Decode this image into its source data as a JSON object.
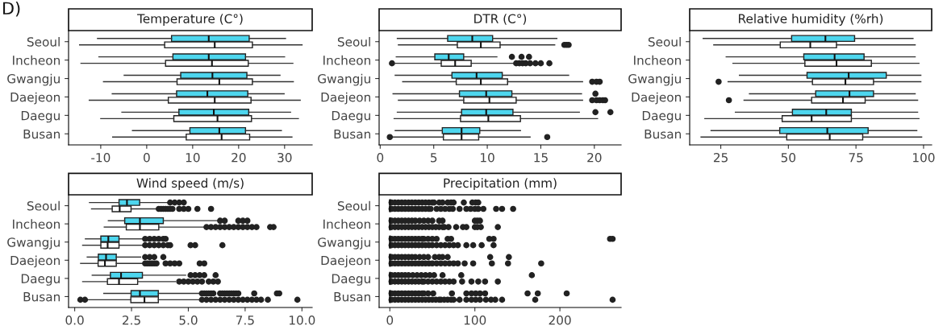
{
  "chart_data": [
    {
      "type": "box",
      "orientation": "horizontal",
      "title": "Temperature (C°)",
      "annotations": [
        "D)"
      ],
      "categories": [
        "Seoul",
        "Incheon",
        "Gwangju",
        "Daejeon",
        "Daegu",
        "Busan"
      ],
      "xlim": [
        -17,
        36
      ],
      "xticks": [
        -10,
        0,
        10,
        20,
        30
      ],
      "series": [
        {
          "color": "#4dd6ee",
          "boxes": [
            {
              "low": -10.7,
              "q1": 5.4,
              "median": 13.5,
              "q3": 22.3,
              "high": 30.2
            },
            {
              "low": -10.4,
              "q1": 5.7,
              "median": 13.5,
              "q3": 21.5,
              "high": 30.0
            },
            {
              "low": -4.9,
              "q1": 7.4,
              "median": 14.3,
              "q3": 21.8,
              "high": 29.0
            },
            {
              "low": -7.5,
              "q1": 6.5,
              "median": 13.2,
              "q3": 22.0,
              "high": 29.9
            },
            {
              "low": -5.4,
              "q1": 7.0,
              "median": 14.6,
              "q3": 22.2,
              "high": 31.3
            },
            {
              "low": -3.1,
              "q1": 9.4,
              "median": 15.8,
              "q3": 21.5,
              "high": 29.3
            }
          ]
        },
        {
          "color": "#ffffff",
          "boxes": [
            {
              "low": -14.6,
              "q1": 3.9,
              "median": 14.8,
              "q3": 23.0,
              "high": 33.8
            },
            {
              "low": -14.3,
              "q1": 4.1,
              "median": 14.2,
              "q3": 22.1,
              "high": 31.8
            },
            {
              "low": -9.4,
              "q1": 6.6,
              "median": 15.8,
              "q3": 23.0,
              "high": 31.9
            },
            {
              "low": -12.5,
              "q1": 4.7,
              "median": 14.8,
              "q3": 22.7,
              "high": 33.4
            },
            {
              "low": -10.0,
              "q1": 5.9,
              "median": 15.4,
              "q3": 22.8,
              "high": 33.0
            },
            {
              "low": -7.4,
              "q1": 8.6,
              "median": 16.3,
              "q3": 22.4,
              "high": 31.6
            }
          ]
        }
      ]
    },
    {
      "type": "box",
      "orientation": "horizontal",
      "title": "DTR (C°)",
      "categories": [
        "Seoul",
        "Incheon",
        "Gwangju",
        "Daejeon",
        "Daegu",
        "Busan"
      ],
      "xlim": [
        -0.1,
        22.5
      ],
      "xticks": [
        0,
        5,
        10,
        15,
        20
      ],
      "series": [
        {
          "color": "#4dd6ee",
          "boxes": [
            {
              "low": 1.6,
              "q1": 6.3,
              "median": 8.6,
              "q3": 10.5,
              "high": 16.5
            },
            {
              "low": 1.5,
              "q1": 5.1,
              "median": 6.4,
              "q3": 7.8,
              "high": 10.9,
              "outliers": [
                12.3,
                13.2,
                13.9
              ]
            },
            {
              "low": 1.4,
              "q1": 6.7,
              "median": 9.0,
              "q3": 11.4,
              "high": 17.6
            },
            {
              "low": 1.2,
              "q1": 7.4,
              "median": 9.9,
              "q3": 12.3,
              "high": 18.8,
              "outliers": [
                20.1
              ]
            },
            {
              "low": 1.6,
              "q1": 7.6,
              "median": 9.9,
              "q3": 12.4,
              "high": 18.6,
              "outliers": [
                20.1,
                21.5
              ]
            },
            {
              "low": 1.4,
              "q1": 5.8,
              "median": 7.6,
              "q3": 9.3,
              "high": 13.1
            }
          ]
        },
        {
          "color": "#ffffff",
          "boxes": [
            {
              "low": 1.7,
              "q1": 7.2,
              "median": 9.4,
              "q3": 11.2,
              "high": 16.3,
              "outliers": [
                17.2,
                17.4,
                17.6
              ]
            },
            {
              "low": 1.4,
              "q1": 5.7,
              "median": 7.0,
              "q3": 8.5,
              "high": 12.4,
              "outliers": [
                1.1,
                12.7,
                13.0,
                13.3,
                13.6,
                14.0,
                14.5,
                15.0,
                15.8
              ]
            },
            {
              "low": 2.1,
              "q1": 7.1,
              "median": 9.4,
              "q3": 11.9,
              "high": 18.9,
              "outliers": [
                19.8,
                20.2,
                20.5
              ]
            },
            {
              "low": 1.7,
              "q1": 7.8,
              "median": 10.2,
              "q3": 12.7,
              "high": 18.9,
              "outliers": [
                19.8,
                20.2,
                20.5,
                20.8,
                21.0
              ]
            },
            {
              "low": 1.3,
              "q1": 7.5,
              "median": 10.1,
              "q3": 13.1,
              "high": 20.3
            },
            {
              "low": 1.2,
              "q1": 5.9,
              "median": 7.6,
              "q3": 9.2,
              "high": 14.0,
              "outliers": [
                0.9,
                15.6
              ]
            }
          ]
        }
      ]
    },
    {
      "type": "box",
      "orientation": "horizontal",
      "title": "Relative humidity (%rh)",
      "categories": [
        "Seoul",
        "Incheon",
        "Gwangju",
        "Daejeon",
        "Daegu",
        "Busan"
      ],
      "xlim": [
        13.5,
        103
      ],
      "xticks": [
        25,
        50,
        75,
        100
      ],
      "series": [
        {
          "color": "#4dd6ee",
          "boxes": [
            {
              "low": 18.5,
              "q1": 51.2,
              "median": 63.7,
              "q3": 74.5,
              "high": 96.1
            },
            {
              "low": 27.0,
              "q1": 55.7,
              "median": 67.1,
              "q3": 78.0,
              "high": 96.9
            },
            {
              "low": 31.9,
              "q1": 56.9,
              "median": 72.3,
              "q3": 86.2,
              "high": 99.0
            },
            {
              "low": 35.6,
              "q1": 60.1,
              "median": 72.6,
              "q3": 81.5,
              "high": 96.9
            },
            {
              "low": 30.4,
              "q1": 51.5,
              "median": 64.0,
              "q3": 73.3,
              "high": 97.8
            },
            {
              "low": 21.4,
              "q1": 46.8,
              "median": 64.4,
              "q3": 79.5,
              "high": 97.5
            }
          ]
        },
        {
          "color": "#ffffff",
          "boxes": [
            {
              "low": 22.4,
              "q1": 47.0,
              "median": 58.1,
              "q3": 67.8,
              "high": 96.9
            },
            {
              "low": 29.5,
              "q1": 56.1,
              "median": 67.8,
              "q3": 80.7,
              "high": 98.3
            },
            {
              "low": 27.7,
              "q1": 58.9,
              "median": 71.1,
              "q3": 81.5,
              "high": 99.0,
              "outliers": [
                24.2
              ]
            },
            {
              "low": 33.6,
              "q1": 58.6,
              "median": 70.2,
              "q3": 78.4,
              "high": 97.8,
              "outliers": [
                28.0
              ]
            },
            {
              "low": 19.1,
              "q1": 47.7,
              "median": 58.6,
              "q3": 73.3,
              "high": 98.3
            },
            {
              "low": 17.7,
              "q1": 49.4,
              "median": 65.3,
              "q3": 77.5,
              "high": 99.3
            }
          ]
        }
      ]
    },
    {
      "type": "box",
      "orientation": "horizontal",
      "title": "Wind speed (m/s)",
      "categories": [
        "Seoul",
        "Incheon",
        "Gwangju",
        "Daejeon",
        "Daegu",
        "Busan"
      ],
      "xlim": [
        -0.27,
        10.45
      ],
      "xticks": [
        {
          "value": 0,
          "label": "0.0"
        },
        2.5,
        {
          "value": 5,
          "label": "5.0"
        },
        7.5,
        {
          "value": 10,
          "label": "10.0"
        }
      ],
      "series": [
        {
          "color": "#4dd6ee",
          "boxes": [
            {
              "low": 0.65,
              "q1": 1.95,
              "median": 2.3,
              "q3": 2.86,
              "high": 4.1,
              "outliers": [
                4.2,
                4.4,
                4.6,
                4.8
              ]
            },
            {
              "low": 1.48,
              "q1": 2.2,
              "median": 2.87,
              "q3": 3.9,
              "high": 6.3,
              "outliers": [
                6.4,
                6.6,
                7.2,
                7.4,
                7.6
              ]
            },
            {
              "low": 0.47,
              "q1": 1.15,
              "median": 1.48,
              "q3": 1.95,
              "high": 3.0,
              "outliers": [
                3.1,
                3.3,
                3.5,
                3.7,
                3.9,
                4.0
              ]
            },
            {
              "low": 0.55,
              "q1": 1.04,
              "median": 1.38,
              "q3": 1.83,
              "high": 2.9,
              "outliers": [
                3.1,
                3.3,
                3.5,
                3.9
              ]
            },
            {
              "low": 0.77,
              "q1": 1.57,
              "median": 2.04,
              "q3": 2.98,
              "high": 4.88,
              "outliers": [
                5.1,
                5.3,
                5.5,
                5.7,
                6.2
              ]
            },
            {
              "low": 1.28,
              "q1": 2.48,
              "median": 2.87,
              "q3": 3.68,
              "high": 5.5,
              "outliers": [
                5.6,
                5.7,
                5.8,
                5.9,
                6.0,
                6.1,
                6.4,
                6.5,
                6.6,
                6.7,
                6.8,
                6.9,
                7.0,
                7.1,
                7.2,
                7.9,
                8.9,
                9.0
              ]
            }
          ]
        },
        {
          "color": "#ffffff",
          "boxes": [
            {
              "low": 0.74,
              "q1": 1.65,
              "median": 1.98,
              "q3": 2.48,
              "high": 3.6,
              "outliers": [
                3.7,
                3.8,
                3.9,
                4.0,
                4.1,
                4.2,
                4.3,
                4.6,
                4.8,
                5.0,
                5.4,
                6.0
              ]
            },
            {
              "low": 1.3,
              "q1": 2.27,
              "median": 2.87,
              "q3": 3.7,
              "high": 5.7,
              "outliers": [
                5.8,
                6.0,
                6.2,
                6.4,
                6.6,
                6.8,
                7.0,
                7.2,
                7.4,
                7.6,
                7.8,
                8.0,
                8.6,
                8.75
              ]
            },
            {
              "low": 0.35,
              "q1": 1.15,
              "median": 1.45,
              "q3": 1.95,
              "high": 3.0,
              "outliers": [
                3.1,
                3.3,
                3.5,
                3.7,
                3.9,
                4.1,
                4.2,
                5.1,
                5.3,
                6.5
              ]
            },
            {
              "low": 0.26,
              "q1": 1.03,
              "median": 1.33,
              "q3": 1.83,
              "high": 3.0,
              "outliers": [
                3.1,
                3.2,
                3.3,
                3.4,
                3.5,
                3.6,
                4.0,
                4.2,
                4.4,
                4.6,
                5.5,
                5.7
              ]
            },
            {
              "low": 0.35,
              "q1": 1.44,
              "median": 1.95,
              "q3": 2.77,
              "high": 4.43,
              "outliers": [
                4.6,
                4.8,
                5.0,
                5.2,
                5.4,
                5.6,
                5.9,
                6.1,
                6.3
              ]
            },
            {
              "low": 0.53,
              "q1": 2.47,
              "median": 3.07,
              "q3": 3.68,
              "high": 5.5,
              "outliers": [
                0.25,
                0.45,
                5.6,
                5.8,
                6.0,
                6.2,
                6.4,
                6.6,
                6.8,
                7.0,
                7.2,
                7.4,
                7.6,
                7.8,
                8.0,
                8.2,
                8.5,
                9.8
              ]
            }
          ]
        }
      ]
    },
    {
      "type": "box",
      "orientation": "horizontal",
      "title": "Precipitation (mm)",
      "categories": [
        "Seoul",
        "Incheon",
        "Gwangju",
        "Daejeon",
        "Daegu",
        "Busan"
      ],
      "xlim": [
        -12.6,
        272
      ],
      "xticks": [
        0,
        100,
        200
      ],
      "series": [
        {
          "color": "#4dd6ee",
          "boxes": [
            {
              "low": 0,
              "q1": 0,
              "median": 0,
              "q3": 0.5,
              "high": 1.5,
              "outliers": [
                2,
                6,
                10,
                14,
                18,
                22,
                26,
                30,
                34,
                38,
                42,
                46,
                50,
                52,
                58,
                62,
                68,
                72,
                75,
                87,
                97,
                101,
                104
              ]
            },
            {
              "low": 0,
              "q1": 0,
              "median": 0,
              "q3": 0.5,
              "high": 1.5,
              "outliers": [
                2,
                6,
                10,
                14,
                18,
                22,
                26,
                30,
                35,
                40,
                45,
                50,
                58,
                62,
                100,
                103,
                106
              ]
            },
            {
              "low": 0,
              "q1": 0,
              "median": 0,
              "q3": 0.5,
              "high": 1.5,
              "outliers": [
                2,
                6,
                10,
                14,
                18,
                22,
                26,
                30,
                34,
                38,
                40,
                45,
                50,
                55,
                68,
                72,
                117,
                122,
                259,
                262
              ]
            },
            {
              "low": 0,
              "q1": 0,
              "median": 0,
              "q3": 0.5,
              "high": 1.5,
              "outliers": [
                2,
                6,
                10,
                14,
                18,
                22,
                26,
                30,
                35,
                40,
                45,
                53,
                58,
                62,
                68,
                118,
                140
              ]
            },
            {
              "low": 0,
              "q1": 0,
              "median": 0,
              "q3": 0.5,
              "high": 1.5,
              "outliers": [
                2,
                6,
                10,
                14,
                18,
                22,
                27,
                32,
                37,
                42,
                47,
                52,
                62,
                84,
                167
              ]
            },
            {
              "low": 0,
              "q1": 0,
              "median": 0,
              "q3": 0.5,
              "high": 1.5,
              "outliers": [
                2,
                6,
                10,
                14,
                18,
                22,
                26,
                30,
                34,
                38,
                40,
                45,
                51,
                73,
                90,
                96,
                101,
                106,
                112,
                162,
                174,
                208
              ]
            }
          ]
        },
        {
          "color": "#ffffff",
          "boxes": [
            {
              "low": 0,
              "q1": 0,
              "median": 0,
              "q3": 0.5,
              "high": 1.5,
              "outliers": [
                2,
                6,
                10,
                14,
                18,
                22,
                26,
                30,
                34,
                38,
                42,
                46,
                48,
                55,
                60,
                65,
                70,
                74,
                82,
                90,
                95,
                100,
                104,
                110,
                125,
                132,
                145
              ]
            },
            {
              "low": 0,
              "q1": 0,
              "median": 0,
              "q3": 0.5,
              "high": 1.5,
              "outliers": [
                2,
                6,
                10,
                14,
                18,
                22,
                26,
                30,
                34,
                38,
                42,
                46,
                50,
                54,
                58,
                62,
                64,
                69,
                78,
                86,
                90,
                100,
                103,
                107,
                127
              ]
            },
            {
              "low": 0,
              "q1": 0,
              "median": 0,
              "q3": 0.5,
              "high": 1.5,
              "outliers": [
                2,
                6,
                10,
                14,
                18,
                22,
                26,
                30,
                34,
                38,
                42,
                46,
                50,
                55,
                60,
                65,
                70,
                75,
                80,
                90,
                98,
                108,
                122
              ]
            },
            {
              "low": 0,
              "q1": 0,
              "median": 0,
              "q3": 0.5,
              "high": 1.5,
              "outliers": [
                2,
                6,
                10,
                14,
                18,
                22,
                26,
                30,
                34,
                38,
                42,
                46,
                50,
                55,
                60,
                65,
                70,
                75,
                80,
                88,
                98,
                120,
                139,
                178
              ]
            },
            {
              "low": 0,
              "q1": 0,
              "median": 0,
              "q3": 0.5,
              "high": 1.5,
              "outliers": [
                2,
                6,
                10,
                14,
                18,
                22,
                26,
                30,
                34,
                38,
                40,
                45,
                50,
                55,
                60,
                65,
                70,
                75,
                85,
                96,
                104,
                112,
                127
              ]
            },
            {
              "low": 0,
              "q1": 0,
              "median": 0,
              "q3": 0.5,
              "high": 1.5,
              "outliers": [
                2,
                6,
                10,
                14,
                18,
                22,
                26,
                30,
                34,
                38,
                42,
                46,
                50,
                54,
                58,
                60,
                64,
                68,
                72,
                75,
                82,
                90,
                96,
                101,
                106,
                113,
                119,
                124,
                132,
                171,
                262
              ]
            }
          ]
        }
      ]
    }
  ]
}
